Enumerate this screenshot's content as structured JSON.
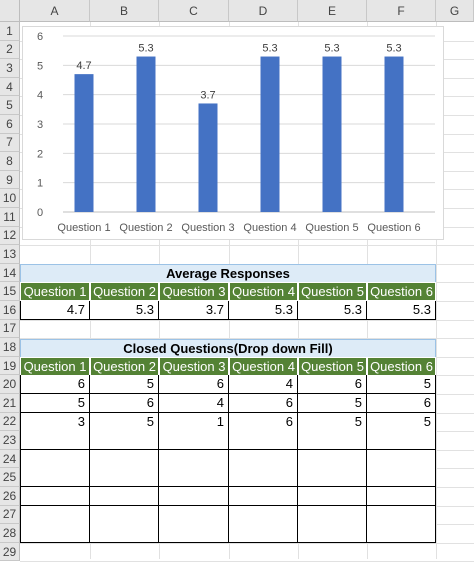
{
  "columns": [
    "A",
    "B",
    "C",
    "D",
    "E",
    "F",
    "G"
  ],
  "rows": [
    "1",
    "2",
    "3",
    "4",
    "5",
    "6",
    "7",
    "8",
    "9",
    "10",
    "11",
    "12",
    "13",
    "14",
    "15",
    "16",
    "17",
    "18",
    "19",
    "20",
    "21",
    "22",
    "23",
    "24",
    "25",
    "26",
    "27",
    "28",
    "29"
  ],
  "chart_data": {
    "type": "bar",
    "categories": [
      "Question 1",
      "Question 2",
      "Question 3",
      "Question 4",
      "Question 5",
      "Question 6"
    ],
    "values": [
      4.7,
      5.3,
      3.7,
      5.3,
      5.3,
      5.3
    ],
    "data_labels": [
      "4.7",
      "5.3",
      "3.7",
      "5.3",
      "5.3",
      "5.3"
    ],
    "y_ticks": [
      "0",
      "1",
      "2",
      "3",
      "4",
      "5",
      "6"
    ],
    "ylim": [
      0,
      6
    ],
    "title": "",
    "xlabel": "",
    "ylabel": "",
    "grid": true,
    "bar_color": "#4472c4"
  },
  "average_table": {
    "title": "Average Responses",
    "headers": [
      "Question 1",
      "Question 2",
      "Question 3",
      "Question 4",
      "Question 5",
      "Question 6"
    ],
    "values": [
      "4.7",
      "5.3",
      "3.7",
      "5.3",
      "5.3",
      "5.3"
    ]
  },
  "closed_table": {
    "title": "Closed Questions(Drop down Fill)",
    "headers": [
      "Question 1",
      "Question 2",
      "Question 3",
      "Question 4",
      "Question 5",
      "Question 6"
    ],
    "rows": [
      [
        "6",
        "5",
        "6",
        "4",
        "6",
        "5"
      ],
      [
        "5",
        "6",
        "4",
        "6",
        "5",
        "6"
      ],
      [
        "3",
        "5",
        "1",
        "6",
        "5",
        "5"
      ],
      [
        "",
        "",
        "",
        "",
        "",
        ""
      ],
      [
        "",
        "",
        "",
        "",
        "",
        ""
      ],
      [
        "",
        "",
        "",
        "",
        "",
        ""
      ],
      [
        "",
        "",
        "",
        "",
        "",
        ""
      ],
      [
        "",
        "",
        "",
        "",
        "",
        ""
      ],
      [
        "",
        "",
        "",
        "",
        "",
        ""
      ]
    ]
  },
  "colors": {
    "header_green": "#548235",
    "title_blue": "#ddebf7",
    "bar": "#4472c4"
  }
}
